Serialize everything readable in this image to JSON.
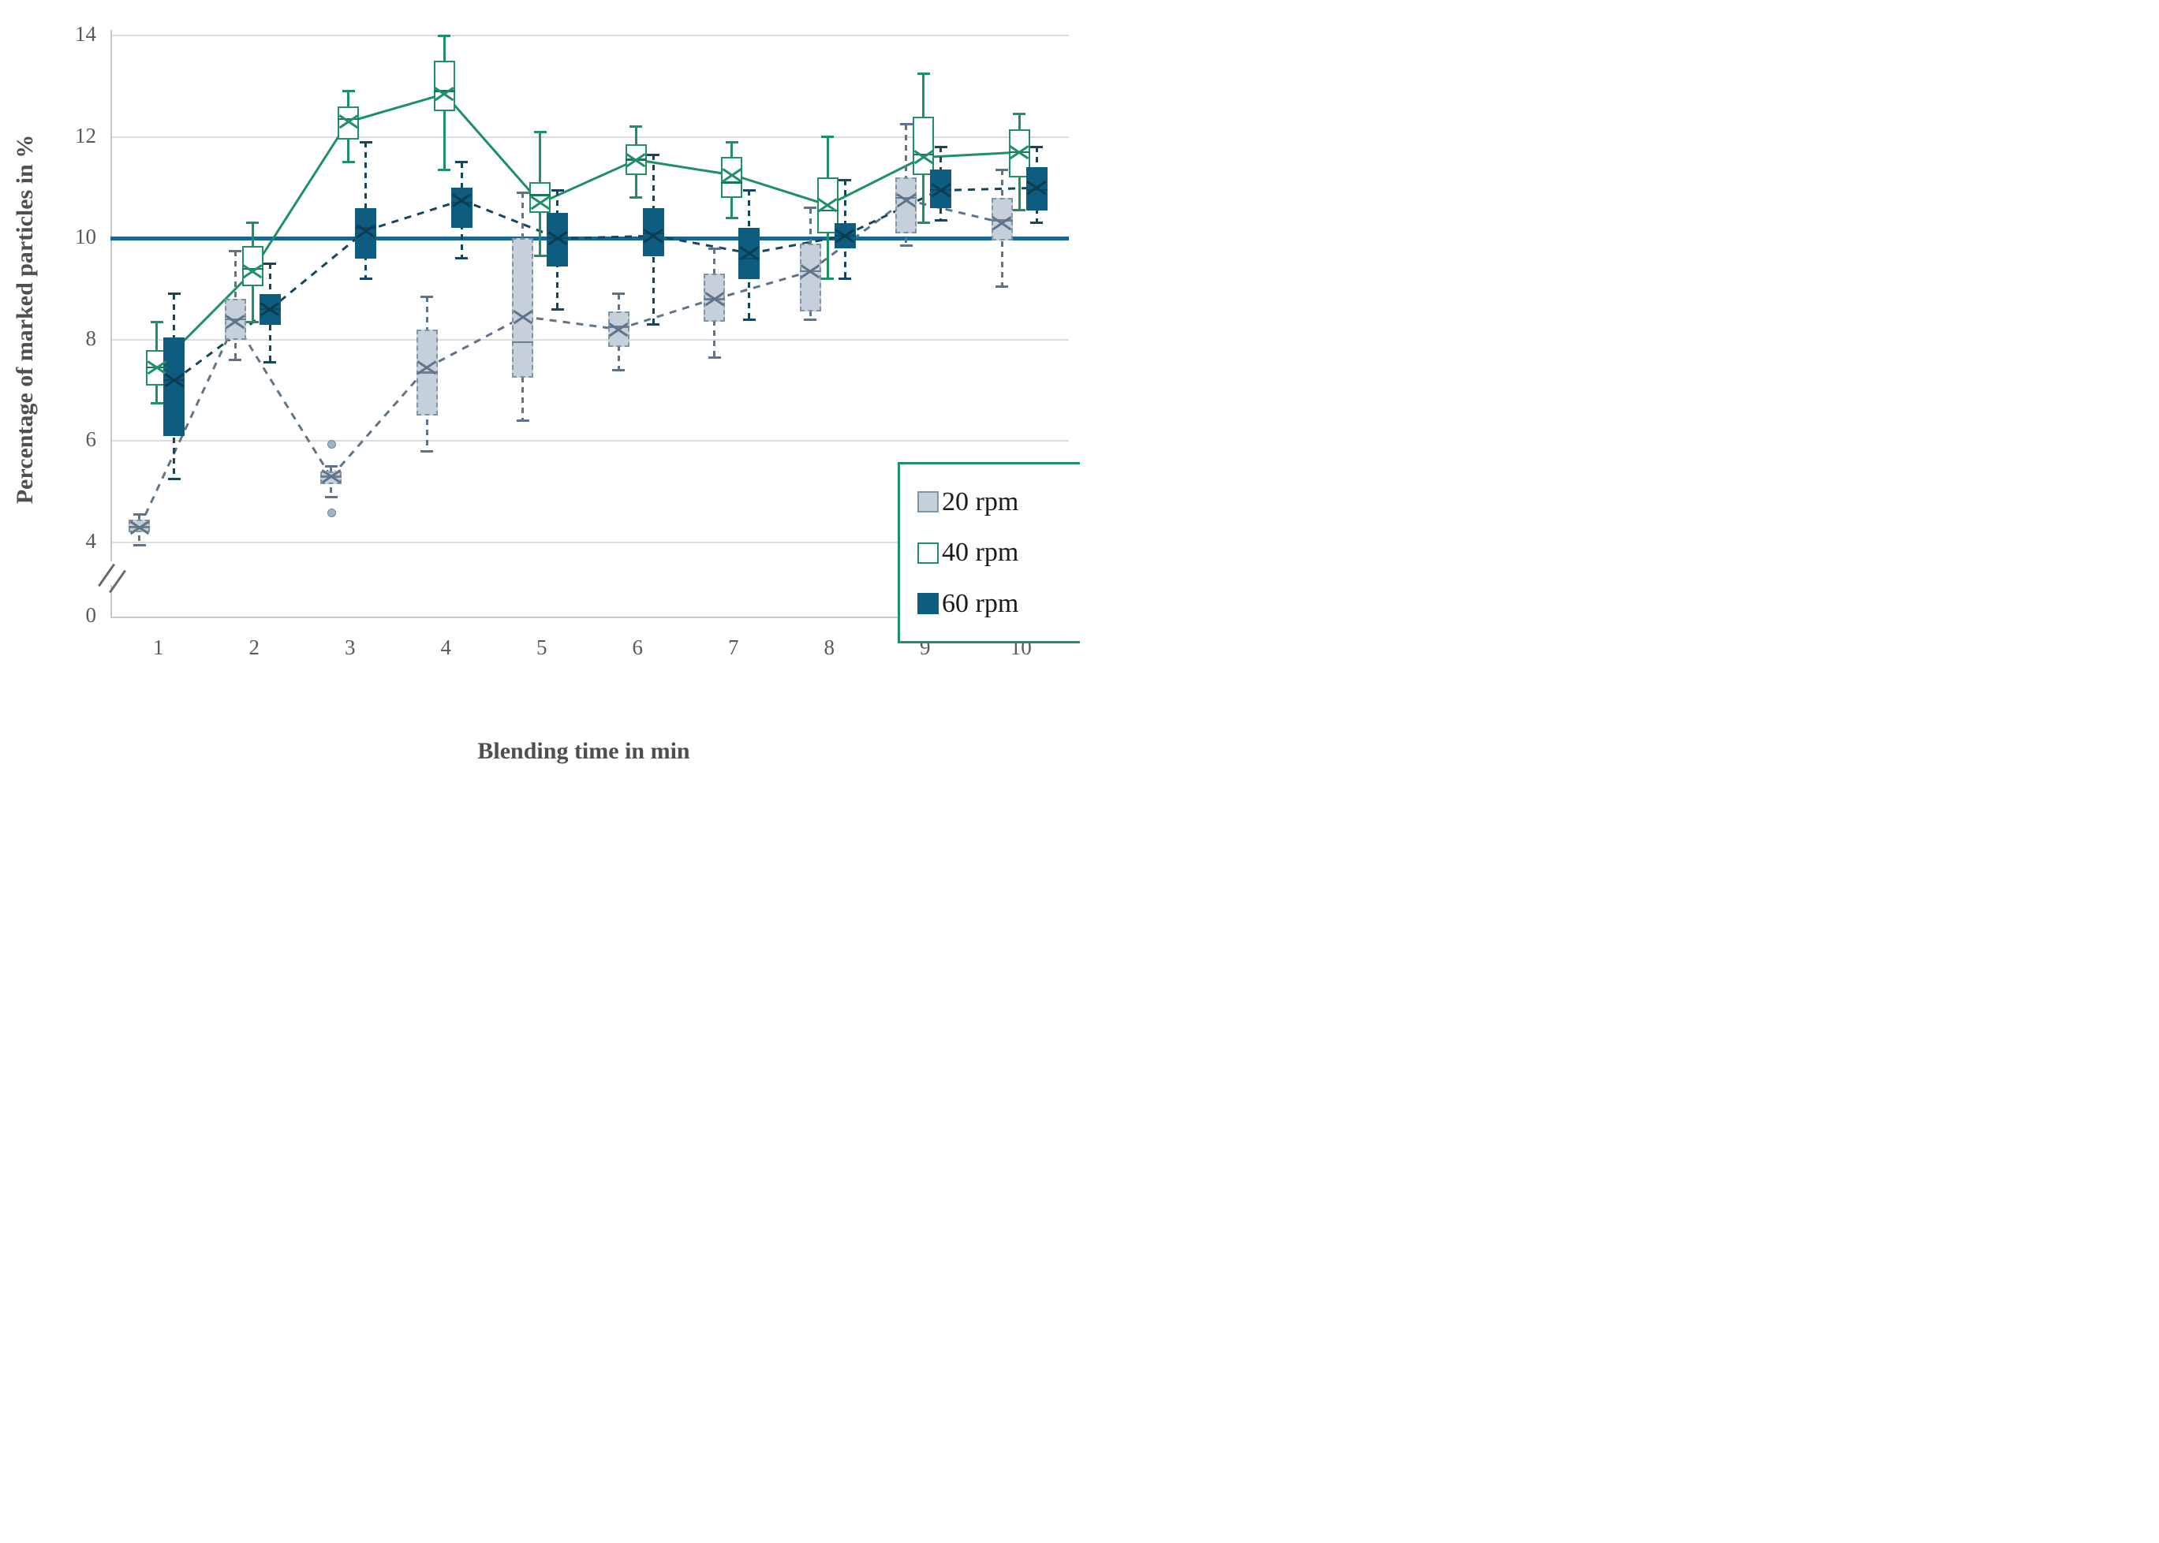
{
  "chart_data": {
    "type": "boxplot",
    "title": "",
    "xlabel": "Blending time in min",
    "ylabel": "Percentage of marked particles in %",
    "x_ticks": [
      "1",
      "2",
      "3",
      "4",
      "5",
      "6",
      "7",
      "8",
      "9",
      "10"
    ],
    "y_tick_values": [
      14,
      12,
      10,
      8,
      6,
      4
    ],
    "y_zero_label": "0",
    "axis_break": true,
    "grid": "horizontal",
    "ylim_linear": [
      3.4,
      14.3
    ],
    "reference_line": {
      "value": 10,
      "color": "#166791"
    },
    "legend_position": "bottom-right",
    "legend": [
      {
        "name": "20 rpm",
        "fill": "#c6d0db",
        "border": "#8094a7"
      },
      {
        "name": "40 rpm",
        "fill": "#ffffff",
        "border": "#1d9065"
      },
      {
        "name": "60 rpm",
        "fill": "#0e5c80",
        "border": "#0e5c80"
      }
    ],
    "series": [
      {
        "name": "20 rpm",
        "fill": "#c6d0db",
        "border": "#8094a7",
        "line_color": "#5f7488",
        "line_style": "dashed",
        "box_style": "dashed",
        "offset": -24,
        "points": [
          {
            "t": 1,
            "low": 3.95,
            "q1": 4.2,
            "median": 4.3,
            "q3": 4.45,
            "high": 4.55,
            "mean": 4.3
          },
          {
            "t": 2,
            "low": 7.6,
            "q1": 8.0,
            "median": 8.4,
            "q3": 8.8,
            "high": 9.75,
            "mean": 8.35
          },
          {
            "t": 3,
            "low": 4.9,
            "q1": 5.15,
            "median": 5.3,
            "q3": 5.4,
            "high": 5.5,
            "mean": 5.3,
            "outliers": [
              5.95,
              4.6
            ]
          },
          {
            "t": 4,
            "low": 5.8,
            "q1": 6.5,
            "median": 7.35,
            "q3": 8.2,
            "high": 8.85,
            "mean": 7.45
          },
          {
            "t": 5,
            "low": 6.4,
            "q1": 7.25,
            "median": 7.95,
            "q3": 10.0,
            "high": 10.9,
            "mean": 8.45
          },
          {
            "t": 6,
            "low": 7.4,
            "q1": 7.85,
            "median": 8.25,
            "q3": 8.55,
            "high": 8.9,
            "mean": 8.2
          },
          {
            "t": 7,
            "low": 7.65,
            "q1": 8.35,
            "median": 8.8,
            "q3": 9.3,
            "high": 9.8,
            "mean": 8.8
          },
          {
            "t": 8,
            "low": 8.4,
            "q1": 8.55,
            "median": 9.35,
            "q3": 9.9,
            "high": 10.6,
            "mean": 9.35
          },
          {
            "t": 9,
            "low": 9.85,
            "q1": 10.1,
            "median": 10.8,
            "q3": 11.2,
            "high": 12.25,
            "mean": 10.75
          },
          {
            "t": 10,
            "low": 9.05,
            "q1": 9.95,
            "median": 10.35,
            "q3": 10.8,
            "high": 11.35,
            "mean": 10.3
          }
        ]
      },
      {
        "name": "40 rpm",
        "fill": "#ffffff",
        "border": "#1d9065",
        "line_color": "#1d9065",
        "line_style": "solid",
        "box_style": "solid",
        "offset": -2,
        "points": [
          {
            "t": 1,
            "low": 6.75,
            "q1": 7.1,
            "median": 7.45,
            "q3": 7.8,
            "high": 8.35,
            "mean": 7.45
          },
          {
            "t": 2,
            "low": 8.35,
            "q1": 9.05,
            "median": 9.4,
            "q3": 9.85,
            "high": 10.3,
            "mean": 9.35
          },
          {
            "t": 3,
            "low": 11.5,
            "q1": 11.95,
            "median": 12.35,
            "q3": 12.6,
            "high": 12.9,
            "mean": 12.3
          },
          {
            "t": 4,
            "low": 11.35,
            "q1": 12.5,
            "median": 12.9,
            "q3": 13.5,
            "high": 14.0,
            "mean": 12.85
          },
          {
            "t": 5,
            "low": 9.65,
            "q1": 10.5,
            "median": 10.85,
            "q3": 11.1,
            "high": 12.1,
            "mean": 10.7
          },
          {
            "t": 6,
            "low": 10.8,
            "q1": 11.25,
            "median": 11.55,
            "q3": 11.85,
            "high": 12.2,
            "mean": 11.55
          },
          {
            "t": 7,
            "low": 10.4,
            "q1": 10.8,
            "median": 11.1,
            "q3": 11.6,
            "high": 11.9,
            "mean": 11.25
          },
          {
            "t": 8,
            "low": 9.2,
            "q1": 10.1,
            "median": 10.55,
            "q3": 11.2,
            "high": 12.0,
            "mean": 10.65
          },
          {
            "t": 9,
            "low": 10.3,
            "q1": 11.25,
            "median": 11.65,
            "q3": 12.4,
            "high": 13.25,
            "mean": 11.6
          },
          {
            "t": 10,
            "low": 10.55,
            "q1": 11.2,
            "median": 11.7,
            "q3": 12.15,
            "high": 12.45,
            "mean": 11.7
          }
        ]
      },
      {
        "name": "60 rpm",
        "fill": "#0e5c80",
        "border": "#0e5c80",
        "line_color": "#16465c",
        "line_style": "dashed",
        "box_style": "dashed",
        "offset": 20,
        "points": [
          {
            "t": 1,
            "low": 5.25,
            "q1": 6.1,
            "median": 7.2,
            "q3": 8.05,
            "high": 8.9,
            "mean": 7.2
          },
          {
            "t": 2,
            "low": 7.55,
            "q1": 8.3,
            "median": 8.6,
            "q3": 8.9,
            "high": 9.5,
            "mean": 8.6
          },
          {
            "t": 3,
            "low": 9.2,
            "q1": 9.6,
            "median": 10.2,
            "q3": 10.6,
            "high": 11.9,
            "mean": 10.15
          },
          {
            "t": 4,
            "low": 9.6,
            "q1": 10.2,
            "median": 10.7,
            "q3": 11.0,
            "high": 11.5,
            "mean": 10.75
          },
          {
            "t": 5,
            "low": 8.6,
            "q1": 9.45,
            "median": 10.0,
            "q3": 10.5,
            "high": 10.95,
            "mean": 10.0
          },
          {
            "t": 6,
            "low": 8.3,
            "q1": 9.65,
            "median": 10.1,
            "q3": 10.6,
            "high": 11.65,
            "mean": 10.05
          },
          {
            "t": 7,
            "low": 8.4,
            "q1": 9.2,
            "median": 9.6,
            "q3": 10.2,
            "high": 10.95,
            "mean": 9.7
          },
          {
            "t": 8,
            "low": 9.2,
            "q1": 9.8,
            "median": 10.05,
            "q3": 10.3,
            "high": 11.15,
            "mean": 10.05
          },
          {
            "t": 9,
            "low": 10.35,
            "q1": 10.6,
            "median": 10.95,
            "q3": 11.35,
            "high": 11.8,
            "mean": 10.95
          },
          {
            "t": 10,
            "low": 10.3,
            "q1": 10.55,
            "median": 10.95,
            "q3": 11.4,
            "high": 11.8,
            "mean": 11.0
          }
        ]
      }
    ]
  }
}
